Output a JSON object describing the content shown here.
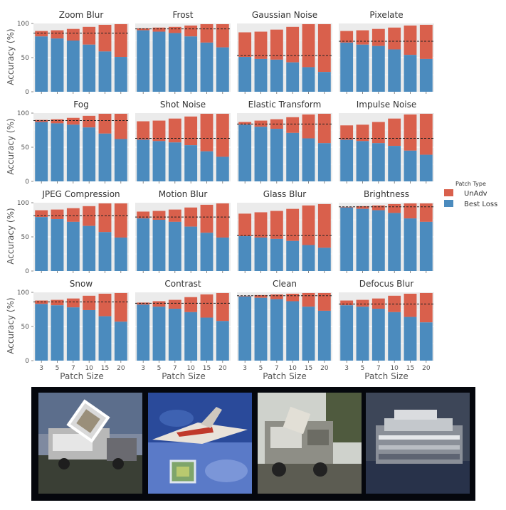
{
  "chart_data": {
    "type": "bar",
    "layout": "facet-grid 4x4, stacked bars",
    "ylabel": "Accuracy (%)",
    "xlabel": "Patch Size",
    "categories": [
      "3",
      "5",
      "7",
      "10",
      "15",
      "20"
    ],
    "ylim": [
      0,
      100
    ],
    "yticks": [
      "0",
      "50",
      "100"
    ],
    "legend": {
      "title": "Patch Type",
      "position": "right",
      "entries": [
        {
          "name": "UnAdv",
          "color": "#d9604c"
        },
        {
          "name": "Best Loss",
          "color": "#4b8bbe"
        }
      ]
    },
    "colors": {
      "panel_bg": "#ebebeb",
      "grid": "#ffffff",
      "reference_line": "#222222"
    },
    "reference_line_style": "dashed",
    "panels": [
      {
        "title": "Zoom Blur",
        "reference": 86,
        "best_loss": [
          81,
          78,
          75,
          69,
          59,
          51
        ],
        "unadv": [
          89,
          90,
          92,
          95,
          98,
          99
        ]
      },
      {
        "title": "Frost",
        "reference": 92,
        "best_loss": [
          90,
          88,
          86,
          81,
          72,
          65
        ],
        "unadv": [
          93,
          94,
          95,
          97,
          99,
          99
        ]
      },
      {
        "title": "Gaussian Noise",
        "reference": 53,
        "best_loss": [
          51,
          48,
          47,
          43,
          36,
          29
        ],
        "unadv": [
          87,
          88,
          91,
          95,
          99,
          99
        ]
      },
      {
        "title": "Pixelate",
        "reference": 74,
        "best_loss": [
          72,
          69,
          67,
          62,
          54,
          48
        ],
        "unadv": [
          89,
          90,
          92,
          94,
          97,
          98
        ]
      },
      {
        "title": "Fog",
        "reference": 89,
        "best_loss": [
          87,
          85,
          83,
          79,
          70,
          62
        ],
        "unadv": [
          90,
          91,
          93,
          96,
          99,
          99
        ]
      },
      {
        "title": "Shot Noise",
        "reference": 63,
        "best_loss": [
          61,
          59,
          57,
          53,
          44,
          36
        ],
        "unadv": [
          88,
          89,
          92,
          95,
          99,
          99
        ]
      },
      {
        "title": "Elastic Transform",
        "reference": 84,
        "best_loss": [
          83,
          80,
          77,
          71,
          63,
          56
        ],
        "unadv": [
          87,
          89,
          91,
          94,
          98,
          99
        ]
      },
      {
        "title": "Impulse Noise",
        "reference": 63,
        "best_loss": [
          61,
          59,
          56,
          52,
          45,
          39
        ],
        "unadv": [
          82,
          83,
          87,
          92,
          98,
          99
        ]
      },
      {
        "title": "JPEG Compression",
        "reference": 81,
        "best_loss": [
          79,
          76,
          72,
          66,
          57,
          49
        ],
        "unadv": [
          89,
          90,
          92,
          95,
          99,
          99
        ]
      },
      {
        "title": "Motion Blur",
        "reference": 79,
        "best_loss": [
          77,
          75,
          72,
          65,
          56,
          49
        ],
        "unadv": [
          87,
          88,
          90,
          93,
          97,
          99
        ]
      },
      {
        "title": "Glass Blur",
        "reference": 52,
        "best_loss": [
          51,
          49,
          47,
          44,
          38,
          34
        ],
        "unadv": [
          84,
          86,
          88,
          91,
          96,
          98
        ]
      },
      {
        "title": "Brightness",
        "reference": 94,
        "best_loss": [
          93,
          91,
          89,
          85,
          77,
          72
        ],
        "unadv": [
          94,
          95,
          96,
          98,
          99,
          99
        ]
      },
      {
        "title": "Snow",
        "reference": 86,
        "best_loss": [
          83,
          81,
          78,
          74,
          65,
          57
        ],
        "unadv": [
          88,
          89,
          91,
          95,
          98,
          99
        ]
      },
      {
        "title": "Contrast",
        "reference": 84,
        "best_loss": [
          82,
          79,
          76,
          71,
          63,
          58
        ],
        "unadv": [
          85,
          87,
          89,
          93,
          97,
          99
        ]
      },
      {
        "title": "Clean",
        "reference": 95,
        "best_loss": [
          94,
          92,
          90,
          87,
          79,
          73
        ],
        "unadv": [
          95,
          96,
          97,
          98,
          99,
          99
        ]
      },
      {
        "title": "Defocus Blur",
        "reference": 83,
        "best_loss": [
          81,
          79,
          76,
          71,
          64,
          56
        ],
        "unadv": [
          88,
          89,
          91,
          95,
          98,
          99
        ]
      }
    ]
  },
  "samples": [
    {
      "name": "truck-with-patch",
      "sky": "#5c6e8c",
      "ground": "#3a3f35",
      "object": "#b8b8b8"
    },
    {
      "name": "airplane-with-patch",
      "sky": "#2a4a9a",
      "ground": "#5a7ac8",
      "object": "#e9e2d9"
    },
    {
      "name": "truck-gray",
      "sky": "#cfd2cc",
      "ground": "#5c5c52",
      "object": "#8e8e86"
    },
    {
      "name": "ship-blurred",
      "sky": "#3d4658",
      "ground": "#28324a",
      "object": "#c4c8cc"
    }
  ]
}
